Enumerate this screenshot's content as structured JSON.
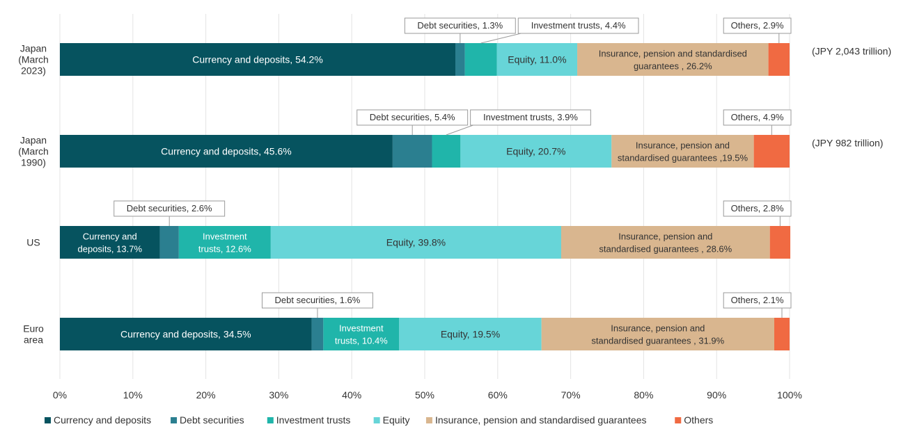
{
  "chart_data": {
    "type": "bar",
    "orientation": "horizontal-stacked-100",
    "xlim": [
      0,
      100
    ],
    "ticks": [
      "0%",
      "10%",
      "20%",
      "30%",
      "40%",
      "50%",
      "60%",
      "70%",
      "80%",
      "90%",
      "100%"
    ],
    "grid": true,
    "legend_position": "bottom",
    "series": [
      {
        "name": "Currency and deposits",
        "color": "#06535f"
      },
      {
        "name": "Debt securities",
        "color": "#2b7f90"
      },
      {
        "name": "Investment trusts",
        "color": "#20b5aa"
      },
      {
        "name": "Equity",
        "color": "#67d5d8"
      },
      {
        "name": "Insurance, pension and standardised guarantees",
        "color": "#d9b68f"
      },
      {
        "name": "Others",
        "color": "#f06a42"
      }
    ],
    "rows": [
      {
        "label_lines": [
          "Japan",
          "(March",
          "2023)"
        ],
        "total": "(JPY 2,043 trillion)",
        "values": [
          54.2,
          1.3,
          4.4,
          11.0,
          26.2,
          2.9
        ],
        "inside": [
          [
            "Currency and deposits, 54.2%"
          ],
          [],
          [],
          [
            "Equity, 11.0%"
          ],
          [
            "Insurance, pension and standardised",
            "guarantees , 26.2%"
          ],
          []
        ],
        "callouts": [
          {
            "series": 1,
            "text": "Debt securities, 1.3%"
          },
          {
            "series": 2,
            "text": "Investment trusts, 4.4%"
          },
          {
            "series": 5,
            "text": "Others, 2.9%"
          }
        ]
      },
      {
        "label_lines": [
          "Japan",
          "(March",
          "1990)"
        ],
        "total": "(JPY 982 trillion)",
        "values": [
          45.6,
          5.4,
          3.9,
          20.7,
          19.5,
          4.9
        ],
        "inside": [
          [
            "Currency and deposits, 45.6%"
          ],
          [],
          [],
          [
            "Equity, 20.7%"
          ],
          [
            "Insurance, pension and",
            "standardised guarantees ,19.5%"
          ],
          []
        ],
        "callouts": [
          {
            "series": 1,
            "text": "Debt securities, 5.4%"
          },
          {
            "series": 2,
            "text": "Investment trusts, 3.9%"
          },
          {
            "series": 5,
            "text": "Others, 4.9%"
          }
        ]
      },
      {
        "label_lines": [
          "US"
        ],
        "total": "",
        "values": [
          13.7,
          2.6,
          12.6,
          39.8,
          28.6,
          2.8
        ],
        "inside": [
          [
            "Currency and",
            "deposits, 13.7%"
          ],
          [],
          [
            "Investment",
            "trusts, 12.6%"
          ],
          [
            "Equity, 39.8%"
          ],
          [
            "Insurance, pension and",
            "standardised guarantees , 28.6%"
          ],
          []
        ],
        "callouts": [
          {
            "series": 1,
            "text": "Debt securities, 2.6%"
          },
          {
            "series": 5,
            "text": "Others, 2.8%"
          }
        ]
      },
      {
        "label_lines": [
          "Euro",
          "area"
        ],
        "total": "",
        "values": [
          34.5,
          1.6,
          10.4,
          19.5,
          31.9,
          2.1
        ],
        "inside": [
          [
            "Currency and deposits, 34.5%"
          ],
          [],
          [
            "Investment",
            "trusts, 10.4%"
          ],
          [
            "Equity, 19.5%"
          ],
          [
            "Insurance, pension and",
            "standardised guarantees , 31.9%"
          ],
          []
        ],
        "callouts": [
          {
            "series": 1,
            "text": "Debt securities, 1.6%"
          },
          {
            "series": 5,
            "text": "Others, 2.1%"
          }
        ]
      }
    ]
  }
}
